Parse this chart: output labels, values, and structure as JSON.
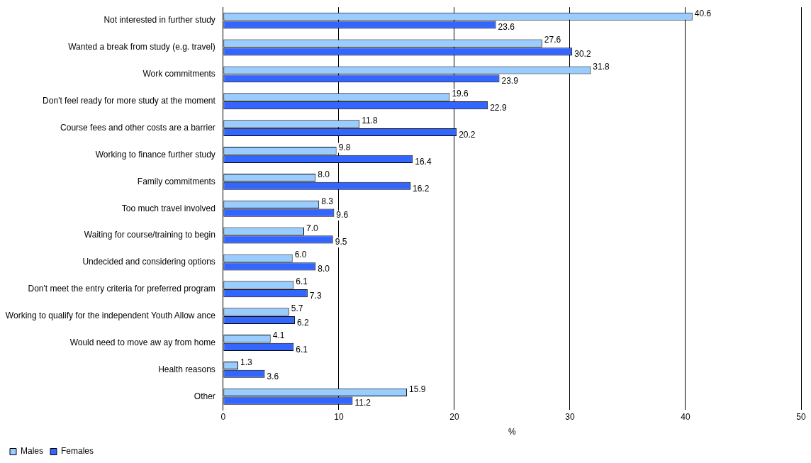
{
  "chart_data": {
    "type": "bar",
    "orientation": "horizontal",
    "xlabel": "%",
    "categories": [
      "Not interested in further study",
      "Wanted a break from study (e.g. travel)",
      "Work commitments",
      "Don't feel ready for more study at the moment",
      "Course fees and other costs are a barrier",
      "Working to finance further study",
      "Family commitments",
      "Too much travel involved",
      "Waiting for course/training to begin",
      "Undecided and considering options",
      "Don't meet the entry criteria for preferred program",
      "Working to qualify for the independent Youth Allow ance",
      "Would need to move aw ay from home",
      "Health reasons",
      "Other"
    ],
    "series": [
      {
        "name": "Males",
        "color": "#99ccff",
        "values": [
          40.6,
          27.6,
          31.8,
          19.6,
          11.8,
          9.8,
          8.0,
          8.3,
          7.0,
          6.0,
          6.1,
          5.7,
          4.1,
          1.3,
          15.9
        ],
        "value_labels": [
          "40.6",
          "27.6",
          "31.8",
          "19.6",
          "11.8",
          "9.8",
          "8.0",
          "8.3",
          "7.0",
          "6.0",
          "6.1",
          "5.7",
          "4.1",
          "1.3",
          "15.9"
        ]
      },
      {
        "name": "Females",
        "color": "#3366ff",
        "values": [
          23.6,
          30.2,
          23.9,
          22.9,
          20.2,
          16.4,
          16.2,
          9.6,
          9.5,
          8.0,
          7.3,
          6.2,
          6.1,
          3.6,
          11.2
        ],
        "value_labels": [
          "23.6",
          "30.2",
          "23.9",
          "22.9",
          "20.2",
          "16.4",
          "16.2",
          "9.6",
          "9.5",
          "8.0",
          "7.3",
          "6.2",
          "6.1",
          "3.6",
          "11.2"
        ]
      }
    ],
    "xlim": [
      0,
      50
    ],
    "xticks": [
      0,
      10,
      20,
      30,
      40,
      50
    ],
    "grid": "x",
    "legend": "bottom left"
  }
}
